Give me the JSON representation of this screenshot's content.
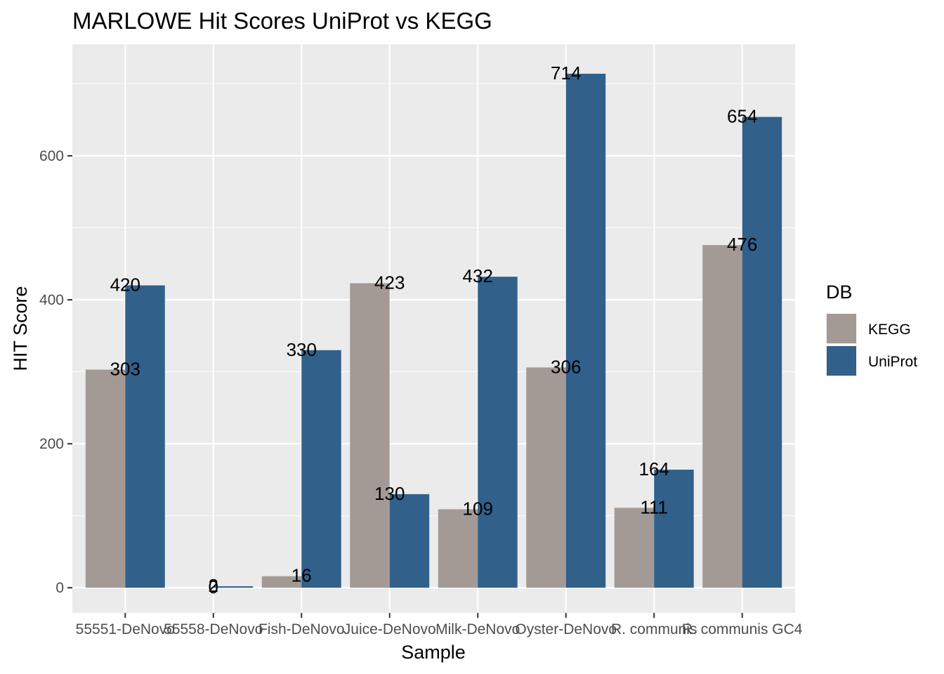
{
  "chart_data": {
    "type": "bar",
    "title": "MARLOWE Hit Scores UniProt vs KEGG",
    "xlabel": "Sample",
    "ylabel": "HIT Score",
    "categories": [
      "55551-DeNovo",
      "55558-DeNovo",
      "Fish-DeNovo",
      "Juice-DeNovo",
      "Milk-DeNovo",
      "Oyster-DeNovo",
      "R. communis",
      "R. communis GC4"
    ],
    "series": [
      {
        "name": "KEGG",
        "color": "#a39a95",
        "values": [
          303,
          0,
          16,
          423,
          109,
          306,
          111,
          476
        ]
      },
      {
        "name": "UniProt",
        "color": "#31608b",
        "values": [
          420,
          2,
          330,
          130,
          432,
          714,
          164,
          654
        ]
      }
    ],
    "ylim": [
      -35,
      755
    ],
    "yticks": [
      0,
      200,
      400,
      600
    ],
    "grid": true,
    "legend": {
      "title": "DB",
      "position": "right"
    }
  }
}
